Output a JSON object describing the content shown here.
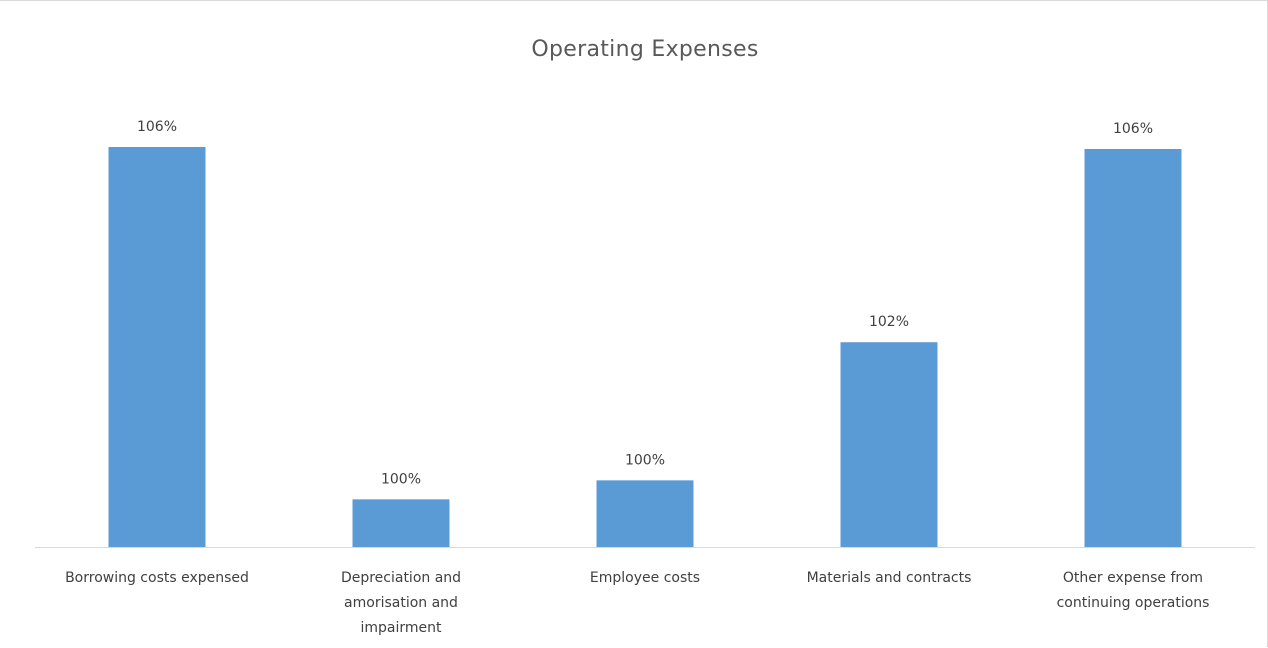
{
  "chart_data": {
    "type": "bar",
    "title": "Operating Expenses",
    "xlabel": "",
    "ylabel": "",
    "categories": [
      "Borrowing costs expensed",
      "Depreciation and amorisation and impairment",
      "Employee costs",
      "Materials and contracts",
      "Other expense from continuing operations"
    ],
    "category_lines": [
      [
        "Borrowing costs expensed"
      ],
      [
        "Depreciation and",
        "amorisation and",
        "impairment"
      ],
      [
        "Employee costs"
      ],
      [
        "Materials and contracts"
      ],
      [
        "Other expense from",
        "continuing operations"
      ]
    ],
    "values": [
      106,
      100,
      100,
      102,
      106
    ],
    "data_labels": [
      "106%",
      "100%",
      "100%",
      "102%",
      "106%"
    ],
    "ylim": [
      0,
      106
    ],
    "bar_color": "#5b9bd5",
    "axis_color": "#d9d9d9",
    "gridlines": false,
    "legend": "none"
  }
}
